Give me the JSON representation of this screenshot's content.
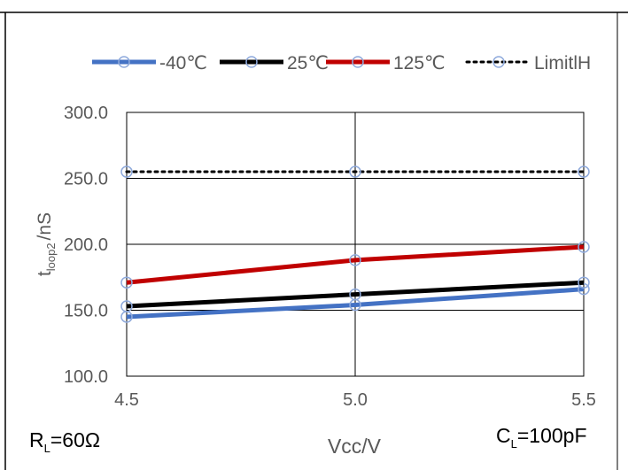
{
  "chart_data": {
    "type": "line",
    "x": [
      4.5,
      5.0,
      5.5
    ],
    "x_tick_labels": [
      "4.5",
      "5.0",
      "5.5"
    ],
    "y_tick_labels": [
      "100.0",
      "150.0",
      "200.0",
      "250.0",
      "300.0"
    ],
    "xlim": [
      4.5,
      5.5
    ],
    "ylim": [
      100,
      300
    ],
    "xlabel": "Vcc/V",
    "ylabel": {
      "main": "t",
      "sub": "loop2",
      "unit": "/nS"
    },
    "grid": "major x and y",
    "legend_position": "top",
    "series": [
      {
        "name": "-40℃",
        "color": "#4472C4",
        "style": "solid",
        "values": [
          145,
          154,
          166
        ]
      },
      {
        "name": "25℃",
        "color": "#000000",
        "style": "solid",
        "values": [
          153,
          162,
          171
        ]
      },
      {
        "name": "125℃",
        "color": "#C00000",
        "style": "solid",
        "values": [
          171,
          188,
          198
        ]
      },
      {
        "name": "LimitlH",
        "color": "#000000",
        "style": "dotted",
        "values": [
          255,
          255,
          255
        ]
      }
    ],
    "annotations": {
      "left": {
        "main": "R",
        "sub": "L",
        "rest": "=60Ω"
      },
      "right": {
        "main": "C",
        "sub": "L",
        "rest": "=100pF"
      }
    }
  }
}
